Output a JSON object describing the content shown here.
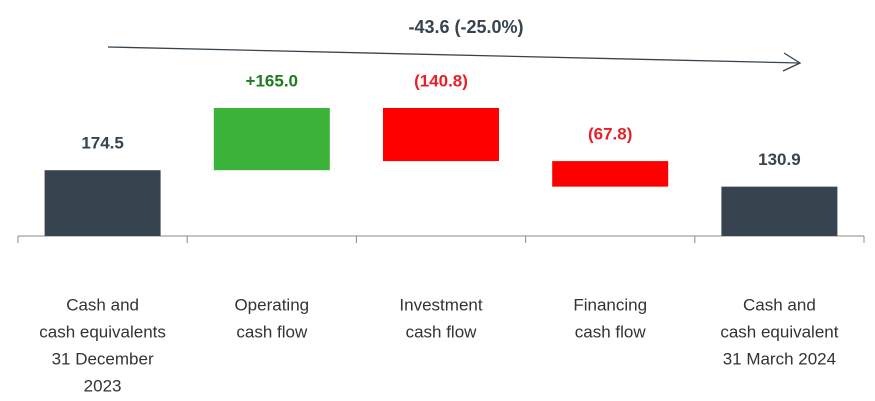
{
  "chart_data": {
    "type": "waterfall",
    "annotation": "-43.6 (-25.0%)",
    "categories": [
      [
        "Cash and",
        "cash equivalents",
        "31 December",
        "2023"
      ],
      [
        "Operating",
        "cash flow"
      ],
      [
        "Investment",
        "cash flow"
      ],
      [
        "Financing",
        "cash flow"
      ],
      [
        "Cash and",
        "cash equivalent",
        "31 March 2024"
      ]
    ],
    "values": [
      174.5,
      165.0,
      -140.8,
      -67.8,
      130.9
    ],
    "value_labels": [
      "174.5",
      "+165.0",
      "(140.8)",
      "(67.8)",
      "130.9"
    ],
    "total": [
      true,
      false,
      false,
      false,
      true
    ],
    "color_total": "#37444f",
    "color_increase": "#3cb43a",
    "color_decrease": "#ff0000"
  }
}
